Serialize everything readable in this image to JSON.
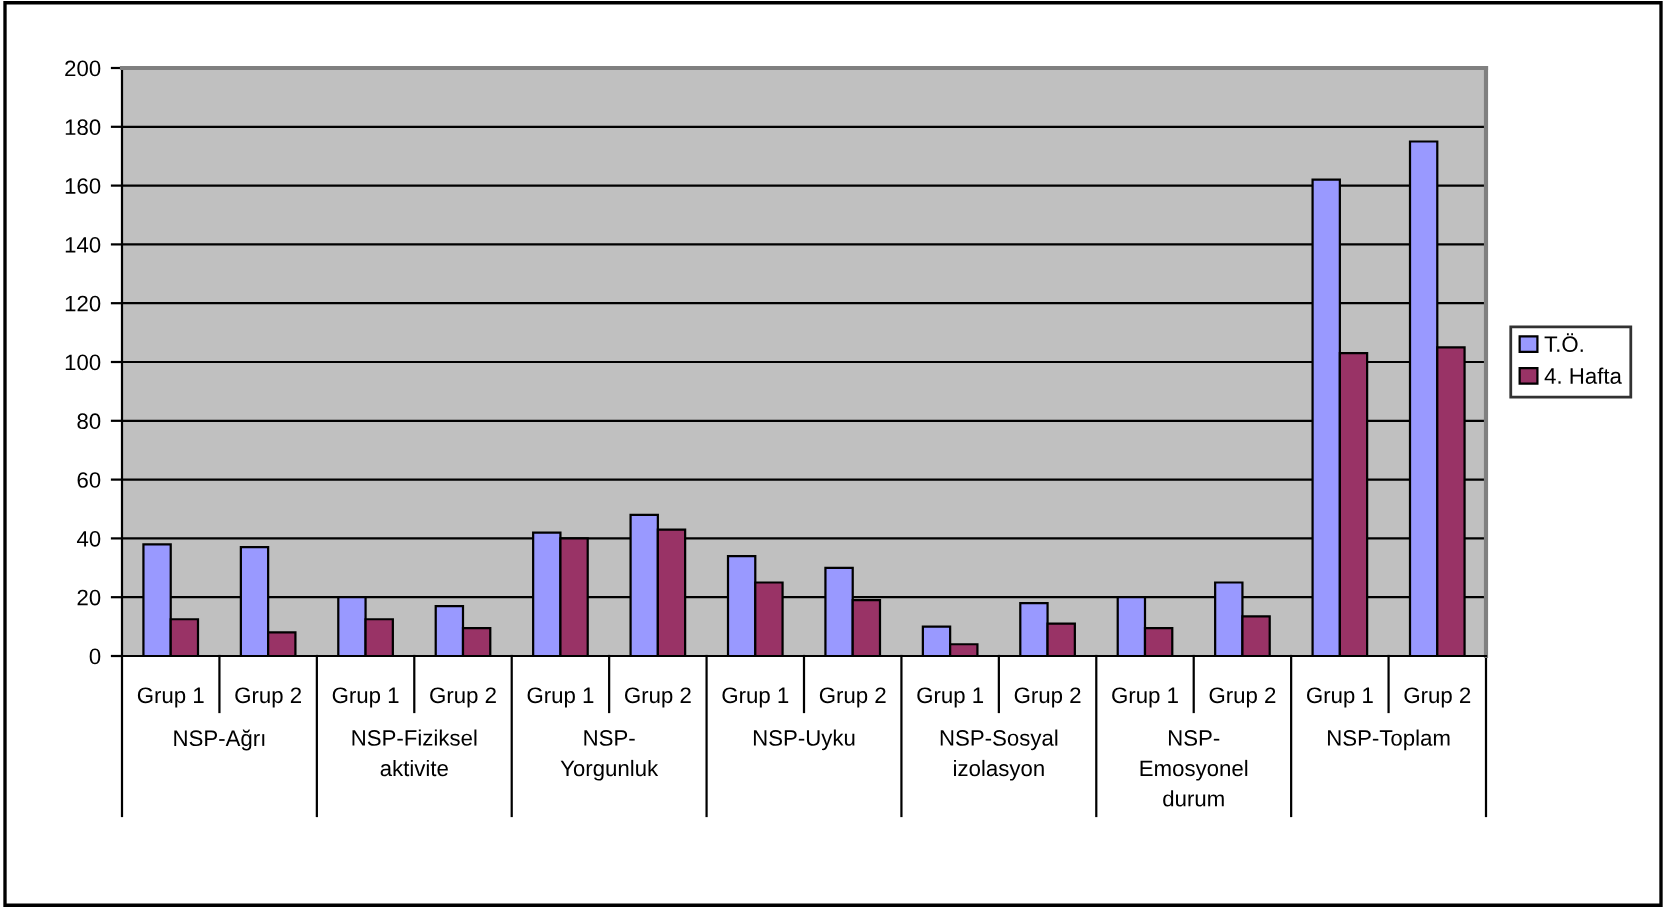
{
  "chart_data": {
    "type": "bar",
    "categories": [
      "Grup 1",
      "Grup 2",
      "Grup 1",
      "Grup 2",
      "Grup 1",
      "Grup 2",
      "Grup 1",
      "Grup 2",
      "Grup 1",
      "Grup 2",
      "Grup 1",
      "Grup 2",
      "Grup 1",
      "Grup 2"
    ],
    "series": [
      {
        "name": "T.Ö.",
        "color": "#9999ff",
        "values": [
          38,
          37,
          20,
          17,
          42,
          48,
          34,
          30,
          10,
          18,
          20,
          25,
          162,
          175
        ]
      },
      {
        "name": "4. Hafta",
        "color": "#993366",
        "values": [
          12.5,
          8,
          12.5,
          9.5,
          40,
          43,
          25,
          19,
          4,
          11,
          9.5,
          13.5,
          103,
          105
        ]
      }
    ],
    "annotations": [
      "NSP-Ağrı",
      "NSP-Fiziksel\naktivite",
      "NSP-\nYorgunluk",
      "NSP-Uyku",
      "NSP-Sosyal\nizolasyon",
      "NSP-\nEmosyonel\ndurum",
      "NSP-Toplam"
    ],
    "ylim": [
      0,
      200
    ],
    "yticks": [
      0,
      20,
      40,
      60,
      80,
      100,
      120,
      140,
      160,
      180,
      200
    ],
    "grid": "y",
    "legend": "right"
  }
}
